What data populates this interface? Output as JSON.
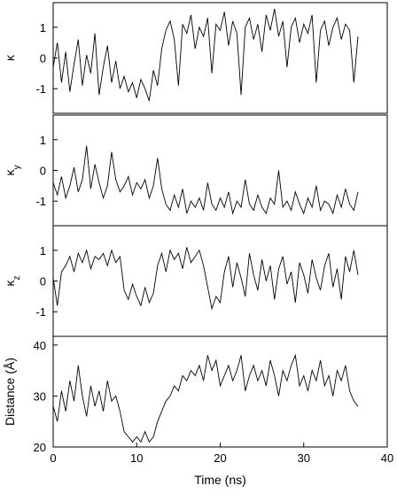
{
  "chart_data": [
    {
      "type": "line",
      "ylabel": "κ",
      "color": "#000000",
      "xlim": [
        0,
        40
      ],
      "ylim": [
        -1.8,
        1.8
      ],
      "yticks": [
        -1,
        0,
        1
      ],
      "x": [
        0,
        0.5,
        1,
        1.5,
        2,
        2.5,
        3,
        3.5,
        4,
        4.5,
        5,
        5.5,
        6,
        6.5,
        7,
        7.5,
        8,
        8.5,
        9,
        9.5,
        10,
        10.5,
        11,
        11.5,
        12,
        12.5,
        13,
        13.5,
        14,
        14.5,
        15,
        15.5,
        16,
        16.5,
        17,
        17.5,
        18,
        18.5,
        19,
        19.5,
        20,
        20.5,
        21,
        21.5,
        22,
        22.5,
        23,
        23.5,
        24,
        24.5,
        25,
        25.5,
        26,
        26.5,
        27,
        27.5,
        28,
        28.5,
        29,
        29.5,
        30,
        30.5,
        31,
        31.5,
        32,
        32.5,
        33,
        33.5,
        34,
        34.5,
        35,
        35.5,
        36,
        36.5
      ],
      "values": [
        -0.3,
        0.5,
        -0.8,
        0.2,
        -1.1,
        -0.2,
        0.6,
        -0.9,
        0.1,
        -0.5,
        0.8,
        -1.2,
        -0.3,
        0.4,
        -0.8,
        -0.1,
        -1.0,
        -0.6,
        -1.1,
        -0.8,
        -1.3,
        -0.7,
        -1.0,
        -1.4,
        -0.4,
        -0.9,
        0.3,
        0.9,
        1.2,
        0.6,
        -0.9,
        1.1,
        0.8,
        1.4,
        0.3,
        1.0,
        0.7,
        1.3,
        -0.5,
        1.1,
        0.9,
        1.5,
        0.4,
        1.2,
        0.8,
        -1.2,
        1.0,
        1.3,
        0.6,
        1.1,
        0.2,
        1.4,
        0.9,
        1.6,
        0.7,
        1.2,
        -0.3,
        1.0,
        1.3,
        0.5,
        1.1,
        0.8,
        1.4,
        -0.8,
        0.9,
        1.2,
        0.4,
        1.0,
        1.3,
        0.6,
        1.1,
        0.9,
        -0.8,
        0.7
      ]
    },
    {
      "type": "line",
      "ylabel": "κ",
      "ylabel_sub": "y",
      "color": "#000000",
      "xlim": [
        0,
        40
      ],
      "ylim": [
        -1.8,
        1.8
      ],
      "yticks": [
        -1,
        0,
        1
      ],
      "x": [
        0,
        0.5,
        1,
        1.5,
        2,
        2.5,
        3,
        3.5,
        4,
        4.5,
        5,
        5.5,
        6,
        6.5,
        7,
        7.5,
        8,
        8.5,
        9,
        9.5,
        10,
        10.5,
        11,
        11.5,
        12,
        12.5,
        13,
        13.5,
        14,
        14.5,
        15,
        15.5,
        16,
        16.5,
        17,
        17.5,
        18,
        18.5,
        19,
        19.5,
        20,
        20.5,
        21,
        21.5,
        22,
        22.5,
        23,
        23.5,
        24,
        24.5,
        25,
        25.5,
        26,
        26.5,
        27,
        27.5,
        28,
        28.5,
        29,
        29.5,
        30,
        30.5,
        31,
        31.5,
        32,
        32.5,
        33,
        33.5,
        34,
        34.5,
        35,
        35.5,
        36,
        36.5
      ],
      "values": [
        -0.4,
        -0.8,
        -0.2,
        -0.9,
        -0.5,
        0.1,
        -0.7,
        -0.3,
        0.8,
        -0.6,
        0.2,
        -0.4,
        -0.9,
        -0.5,
        0.6,
        -0.3,
        -0.7,
        -0.5,
        -0.2,
        -0.8,
        -0.4,
        -0.6,
        -0.3,
        -0.9,
        -0.5,
        0.4,
        -0.6,
        -1.1,
        -1.3,
        -0.8,
        -1.2,
        -0.6,
        -1.4,
        -1.0,
        -1.2,
        -0.9,
        -1.3,
        -0.4,
        -1.1,
        -1.3,
        -0.9,
        -1.2,
        -0.7,
        -1.4,
        -1.0,
        -1.2,
        -0.3,
        -1.1,
        -1.3,
        -0.8,
        -1.2,
        -1.4,
        -0.9,
        -1.1,
        0.0,
        -1.2,
        -1.0,
        -1.3,
        -0.7,
        -1.1,
        -1.4,
        -0.9,
        -1.2,
        -0.5,
        -1.3,
        -1.0,
        -1.1,
        -1.4,
        -0.8,
        -1.2,
        -0.6,
        -1.1,
        -1.3,
        -0.7
      ]
    },
    {
      "type": "line",
      "ylabel": "κ",
      "ylabel_sub": "z",
      "color": "#000000",
      "xlim": [
        0,
        40
      ],
      "ylim": [
        -1.8,
        1.8
      ],
      "yticks": [
        -1,
        0,
        1
      ],
      "x": [
        0,
        0.5,
        1,
        1.5,
        2,
        2.5,
        3,
        3.5,
        4,
        4.5,
        5,
        5.5,
        6,
        6.5,
        7,
        7.5,
        8,
        8.5,
        9,
        9.5,
        10,
        10.5,
        11,
        11.5,
        12,
        12.5,
        13,
        13.5,
        14,
        14.5,
        15,
        15.5,
        16,
        16.5,
        17,
        17.5,
        18,
        18.5,
        19,
        19.5,
        20,
        20.5,
        21,
        21.5,
        22,
        22.5,
        23,
        23.5,
        24,
        24.5,
        25,
        25.5,
        26,
        26.5,
        27,
        27.5,
        28,
        28.5,
        29,
        29.5,
        30,
        30.5,
        31,
        31.5,
        32,
        32.5,
        33,
        33.5,
        34,
        34.5,
        35,
        35.5,
        36,
        36.5
      ],
      "values": [
        0.1,
        -0.8,
        0.3,
        0.5,
        0.8,
        0.3,
        0.9,
        0.6,
        1.0,
        0.4,
        0.8,
        0.7,
        0.9,
        0.5,
        1.0,
        0.6,
        0.8,
        -0.3,
        -0.6,
        -0.1,
        -0.5,
        -0.8,
        -0.2,
        -0.7,
        -0.4,
        0.5,
        0.9,
        0.3,
        1.0,
        0.7,
        0.9,
        0.4,
        1.1,
        0.6,
        0.8,
        1.0,
        0.5,
        -0.2,
        -0.9,
        -0.5,
        -0.7,
        0.3,
        0.8,
        -0.2,
        0.6,
        0.1,
        -0.5,
        0.9,
        0.2,
        -0.3,
        0.7,
        0.0,
        0.5,
        -0.6,
        0.4,
        0.8,
        -0.1,
        0.3,
        -0.7,
        0.6,
        0.2,
        -0.4,
        0.7,
        0.1,
        -0.3,
        0.5,
        0.9,
        -0.2,
        0.4,
        -0.6,
        0.8,
        0.3,
        1.0,
        0.2
      ]
    },
    {
      "type": "line",
      "ylabel": "Distance (Å)",
      "xlabel": "Time (ns)",
      "color": "#000000",
      "xlim": [
        0,
        40
      ],
      "ylim": [
        20,
        41.7
      ],
      "yticks": [
        20,
        30,
        40
      ],
      "xticks": [
        0,
        10,
        20,
        30,
        40
      ],
      "x": [
        0,
        0.5,
        1,
        1.5,
        2,
        2.5,
        3,
        3.5,
        4,
        4.5,
        5,
        5.5,
        6,
        6.5,
        7,
        7.5,
        8,
        8.5,
        9,
        9.5,
        10,
        10.5,
        11,
        11.5,
        12,
        12.5,
        13,
        13.5,
        14,
        14.5,
        15,
        15.5,
        16,
        16.5,
        17,
        17.5,
        18,
        18.5,
        19,
        19.5,
        20,
        20.5,
        21,
        21.5,
        22,
        22.5,
        23,
        23.5,
        24,
        24.5,
        25,
        25.5,
        26,
        26.5,
        27,
        27.5,
        28,
        28.5,
        29,
        29.5,
        30,
        30.5,
        31,
        31.5,
        32,
        32.5,
        33,
        33.5,
        34,
        34.5,
        35,
        35.5,
        36,
        36.5
      ],
      "values": [
        28,
        25,
        31,
        27,
        33,
        29,
        36,
        30,
        26,
        32,
        28,
        31,
        27,
        33,
        29,
        30,
        27,
        23,
        22,
        21,
        22,
        21,
        23,
        21,
        22,
        25,
        27,
        29,
        30,
        32,
        31,
        34,
        33,
        35,
        34,
        36,
        33,
        38,
        35,
        37,
        32,
        34,
        36,
        33,
        35,
        38,
        31,
        34,
        36,
        33,
        35,
        32,
        37,
        34,
        30,
        35,
        33,
        36,
        38,
        32,
        34,
        31,
        35,
        33,
        37,
        32,
        34,
        30,
        35,
        33,
        36,
        31,
        29,
        28
      ]
    }
  ]
}
